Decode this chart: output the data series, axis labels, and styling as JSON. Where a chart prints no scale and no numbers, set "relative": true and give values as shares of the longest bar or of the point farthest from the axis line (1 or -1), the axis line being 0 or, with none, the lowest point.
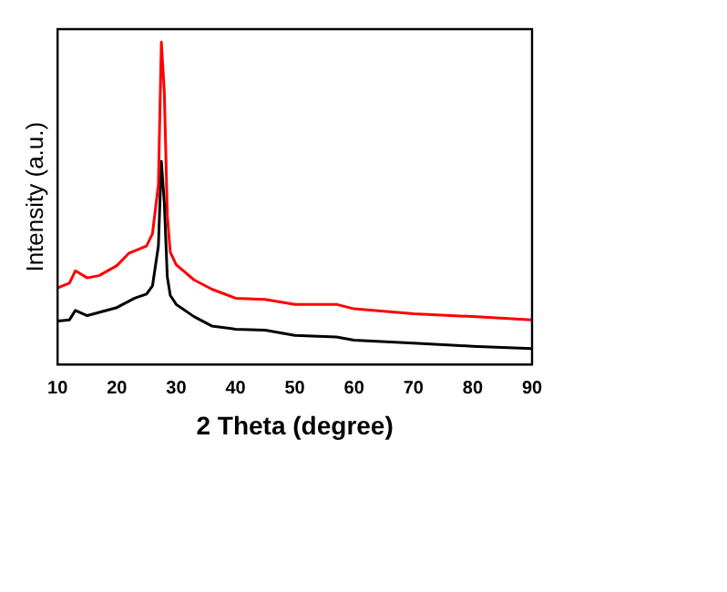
{
  "chart_data": {
    "type": "line",
    "relative": true,
    "xlabel": "2 Theta (degree)",
    "ylabel": "Intensity (a.u.)",
    "xlim": [
      10,
      90
    ],
    "xticks": [
      10,
      20,
      30,
      40,
      50,
      60,
      70,
      80,
      90
    ],
    "grid": false,
    "legend": false,
    "marker": "none",
    "line_style": "solid",
    "series": [
      {
        "color": "#ff0000",
        "x": [
          10,
          12,
          13,
          15,
          17,
          20,
          22,
          25,
          26,
          27,
          27.5,
          28,
          28.5,
          29,
          30,
          33,
          36,
          40,
          45,
          50,
          57,
          60,
          70,
          80,
          90
        ],
        "values": [
          0.238,
          0.253,
          0.291,
          0.269,
          0.276,
          0.307,
          0.345,
          0.368,
          0.406,
          0.558,
          1,
          0.844,
          0.463,
          0.349,
          0.31,
          0.263,
          0.234,
          0.206,
          0.202,
          0.187,
          0.187,
          0.173,
          0.158,
          0.149,
          0.139
        ]
      },
      {
        "color": "#000000",
        "x": [
          10,
          12,
          13,
          15,
          20,
          23,
          25,
          26,
          27,
          27.5,
          28,
          28.5,
          29,
          30,
          33,
          36,
          40,
          45,
          50,
          57,
          60,
          70,
          80,
          90
        ],
        "values": [
          0.135,
          0.139,
          0.168,
          0.152,
          0.177,
          0.206,
          0.219,
          0.244,
          0.368,
          0.63,
          0.501,
          0.272,
          0.215,
          0.187,
          0.149,
          0.12,
          0.11,
          0.107,
          0.091,
          0.086,
          0.076,
          0.067,
          0.057,
          0.05
        ]
      }
    ]
  }
}
